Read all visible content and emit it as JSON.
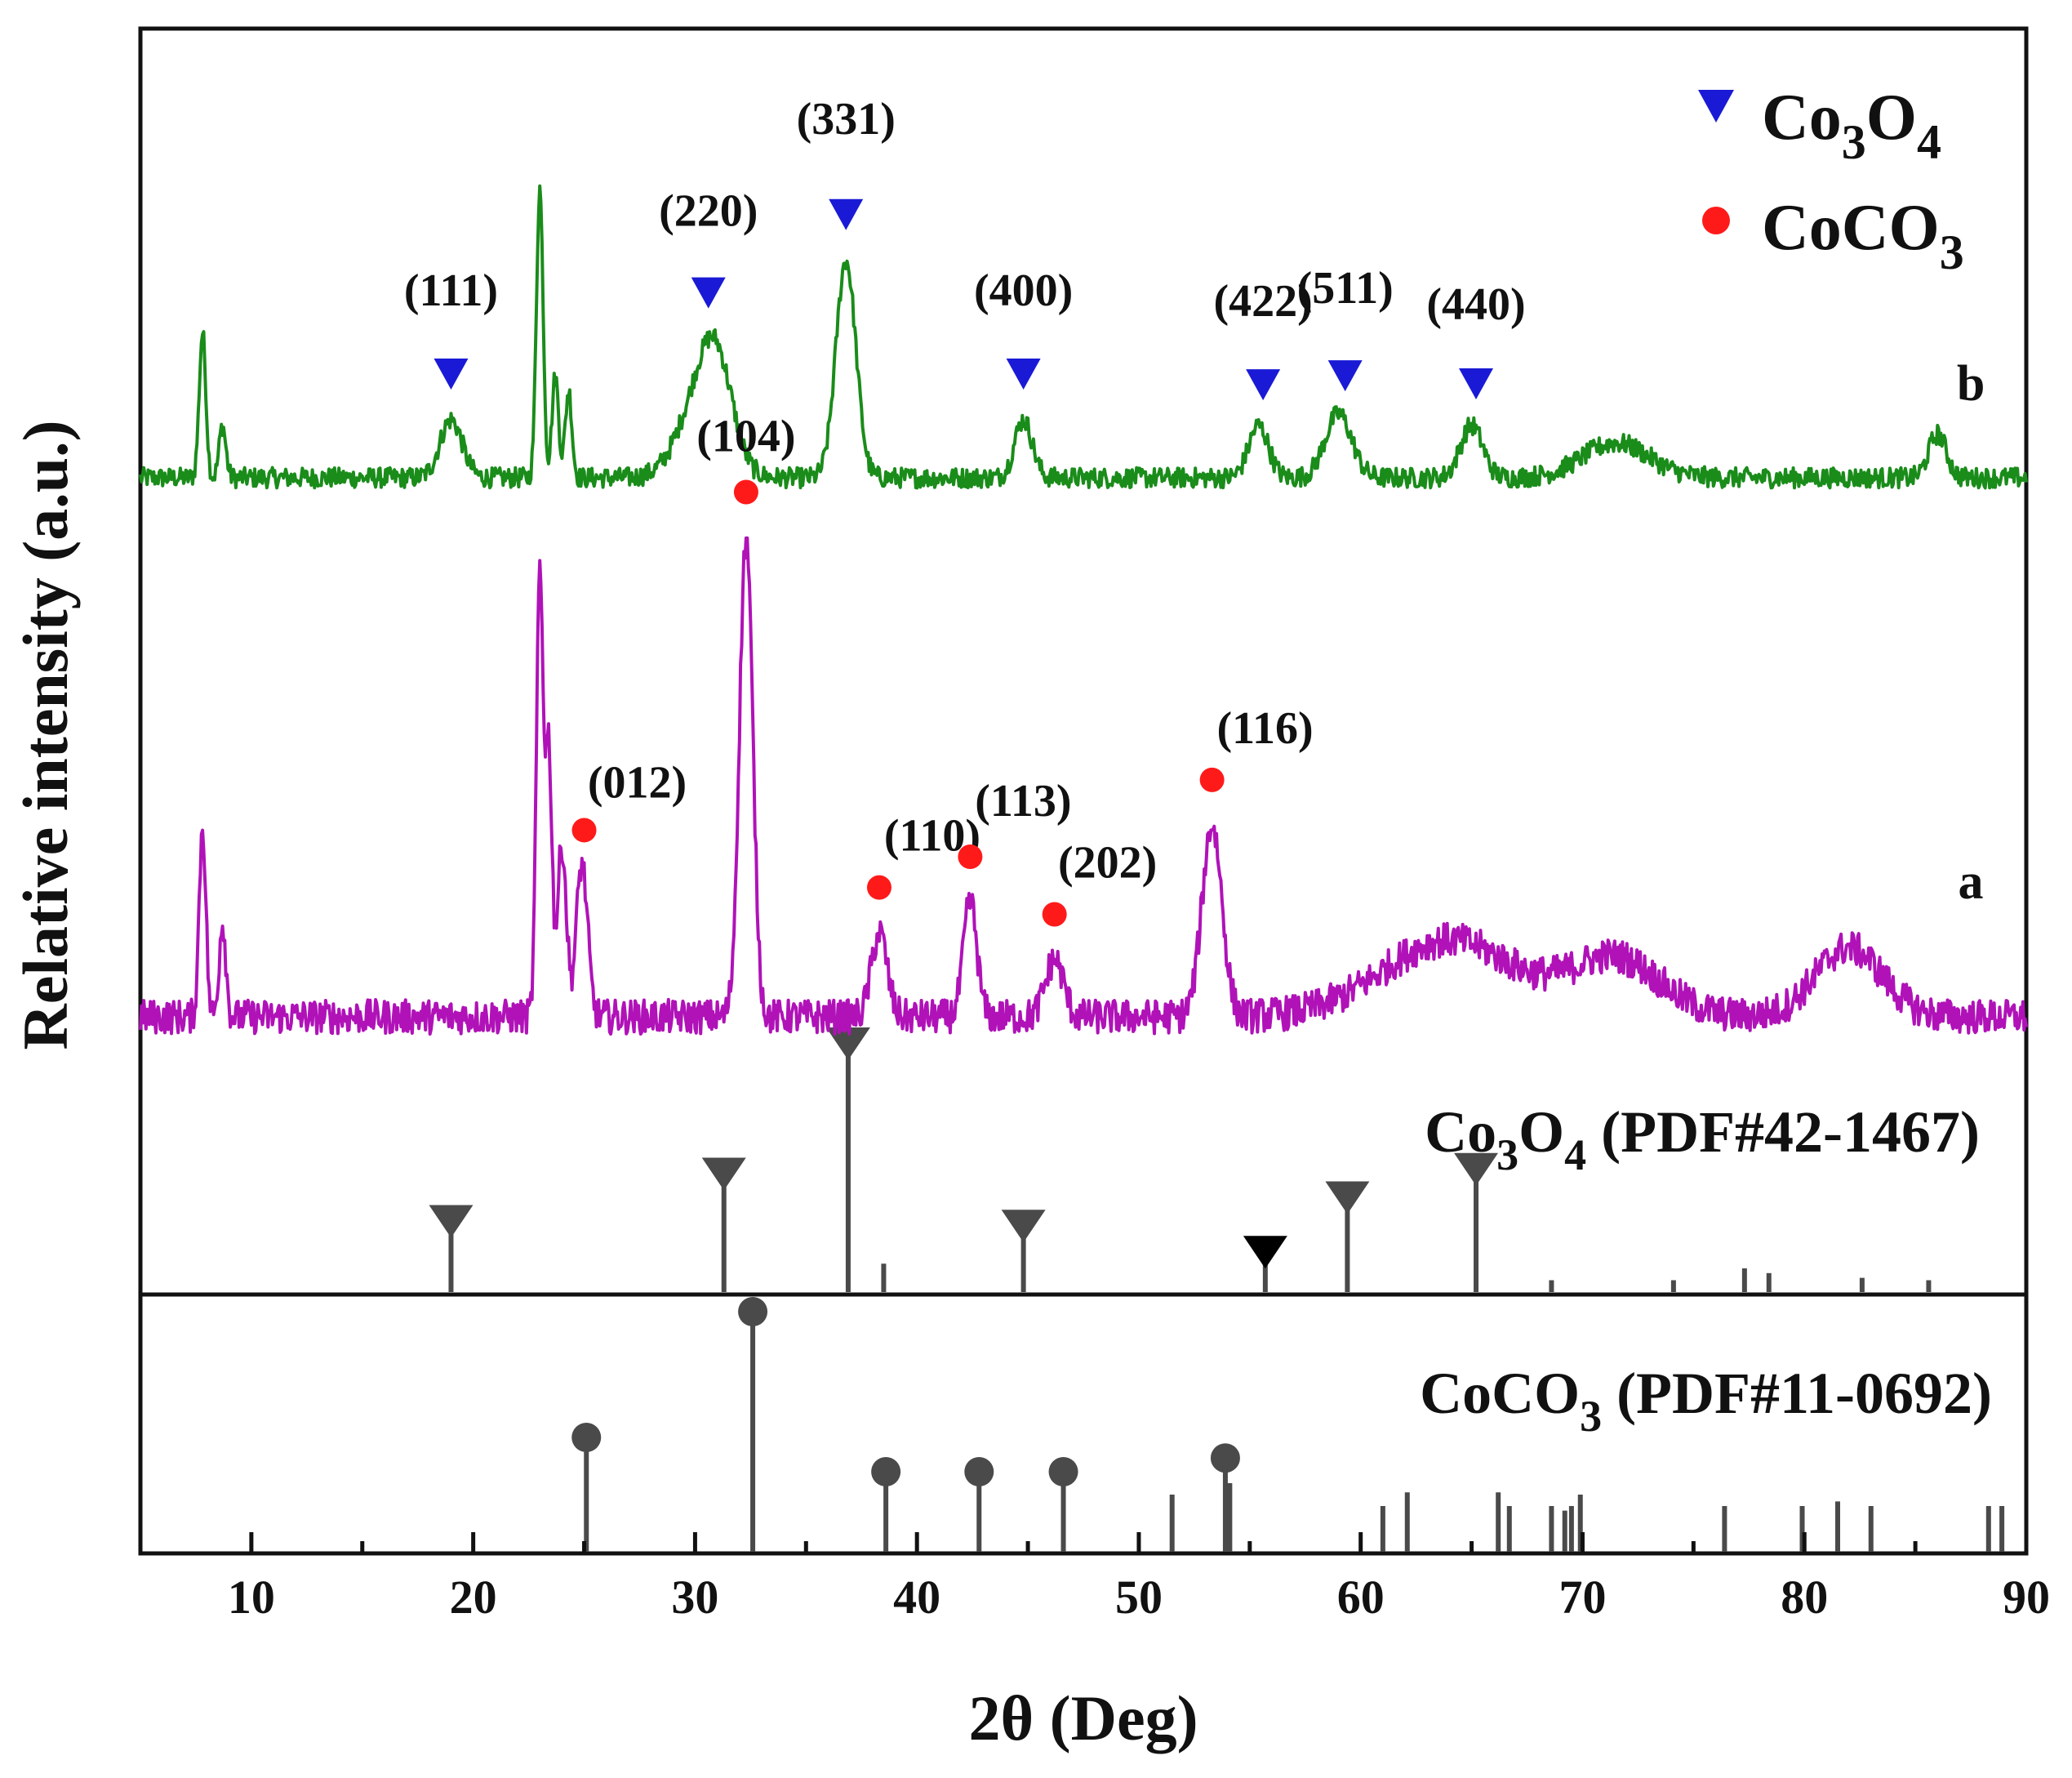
{
  "chart_data": {
    "type": "line",
    "title": "",
    "xlabel": "2θ (Deg)",
    "ylabel": "Relative intensity (a.u.)",
    "xlim": [
      5,
      90
    ],
    "xticks": [
      10,
      20,
      30,
      40,
      50,
      60,
      70,
      80,
      90
    ],
    "xtick_labels": [
      "10",
      "20",
      "30",
      "40",
      "50",
      "60",
      "70",
      "80",
      "90"
    ],
    "grid": false,
    "legend": {
      "placement": "top-right",
      "entries": [
        {
          "marker": "triangle-down",
          "color": "#1a1ad6",
          "label": {
            "base": "Co",
            "sub1": "3",
            "mid": "O",
            "sub2": "4"
          }
        },
        {
          "marker": "circle",
          "color": "#ff1a1a",
          "label": {
            "base": "CoCO",
            "sub1": "3"
          }
        }
      ]
    },
    "series": [
      {
        "name": "b",
        "color": "#1a8c1a",
        "baseline": 0.18,
        "noise": 0.035,
        "peaks": [
          {
            "x": 7.8,
            "h": 0.5,
            "w": 0.15
          },
          {
            "x": 8.7,
            "h": 0.18,
            "w": 0.15
          },
          {
            "x": 19.0,
            "h": 0.2,
            "w": 0.5
          },
          {
            "x": 23.0,
            "h": 1.0,
            "w": 0.15
          },
          {
            "x": 23.7,
            "h": 0.35,
            "w": 0.15
          },
          {
            "x": 24.3,
            "h": 0.3,
            "w": 0.15
          },
          {
            "x": 30.3,
            "h": 0.28,
            "w": 1.0
          },
          {
            "x": 31.0,
            "h": 0.25,
            "w": 0.7
          },
          {
            "x": 36.8,
            "h": 0.75,
            "w": 0.45
          },
          {
            "x": 44.8,
            "h": 0.2,
            "w": 0.4
          },
          {
            "x": 55.4,
            "h": 0.18,
            "w": 0.45
          },
          {
            "x": 59.0,
            "h": 0.22,
            "w": 0.6
          },
          {
            "x": 65.0,
            "h": 0.18,
            "w": 0.5
          },
          {
            "x": 71.5,
            "h": 0.12,
            "w": 1.5
          },
          {
            "x": 86.0,
            "h": 0.15,
            "w": 0.4
          }
        ]
      },
      {
        "name": "a",
        "color": "#b012b8",
        "baseline": 0.14,
        "noise": 0.045,
        "peaks": [
          {
            "x": 7.8,
            "h": 0.5,
            "w": 0.15
          },
          {
            "x": 8.7,
            "h": 0.25,
            "w": 0.15
          },
          {
            "x": 23.0,
            "h": 1.15,
            "w": 0.15
          },
          {
            "x": 23.4,
            "h": 0.7,
            "w": 0.15
          },
          {
            "x": 24.0,
            "h": 0.45,
            "w": 0.2
          },
          {
            "x": 24.9,
            "h": 0.4,
            "w": 0.25
          },
          {
            "x": 32.3,
            "h": 1.25,
            "w": 0.3
          },
          {
            "x": 38.3,
            "h": 0.22,
            "w": 0.35
          },
          {
            "x": 42.4,
            "h": 0.3,
            "w": 0.3
          },
          {
            "x": 46.2,
            "h": 0.15,
            "w": 0.4
          },
          {
            "x": 53.3,
            "h": 0.5,
            "w": 0.45
          },
          {
            "x": 64.0,
            "h": 0.2,
            "w": 3.0
          },
          {
            "x": 71.5,
            "h": 0.15,
            "w": 2.0
          },
          {
            "x": 82.0,
            "h": 0.18,
            "w": 1.5
          }
        ]
      }
    ],
    "curve_labels": [
      {
        "text": "b",
        "x": 84.0,
        "series": "b"
      },
      {
        "text": "a",
        "x": 84.0,
        "series": "a"
      }
    ],
    "peak_annotations": {
      "b": [
        {
          "x": 19.0,
          "label": "(111)"
        },
        {
          "x": 30.6,
          "label": "(220)"
        },
        {
          "x": 36.8,
          "label": "(331)"
        },
        {
          "x": 44.8,
          "label": "(400)"
        },
        {
          "x": 55.6,
          "label": "(422)"
        },
        {
          "x": 59.3,
          "label": "(511)"
        },
        {
          "x": 65.2,
          "label": "(440)"
        }
      ],
      "a": [
        {
          "x": 25.0,
          "label": "(012)"
        },
        {
          "x": 32.3,
          "label": "(104)"
        },
        {
          "x": 38.3,
          "label": "(110)"
        },
        {
          "x": 42.4,
          "label": "(113)"
        },
        {
          "x": 46.2,
          "label": "(202)"
        },
        {
          "x": 53.3,
          "label": "(116)"
        }
      ]
    },
    "reference_patterns": [
      {
        "name": "Co3O4 (PDF#42-1467)",
        "label": {
          "base": "Co",
          "sub1": "3",
          "mid": "O",
          "sub2": "4",
          "tail": " (PDF#42-1467)"
        },
        "marker": "triangle-down",
        "marker_color": "#4a4a4a",
        "lines": [
          {
            "x": 19.0,
            "h": 0.25,
            "marker": true
          },
          {
            "x": 31.3,
            "h": 0.45,
            "marker": true
          },
          {
            "x": 36.9,
            "h": 1.0,
            "marker": true
          },
          {
            "x": 38.5,
            "h": 0.12
          },
          {
            "x": 44.8,
            "h": 0.23,
            "marker": true
          },
          {
            "x": 55.7,
            "h": 0.12,
            "marker": true,
            "marker_color": "#000000"
          },
          {
            "x": 59.4,
            "h": 0.35,
            "marker": true
          },
          {
            "x": 65.2,
            "h": 0.47,
            "marker": true
          },
          {
            "x": 68.6,
            "h": 0.05
          },
          {
            "x": 74.1,
            "h": 0.05
          },
          {
            "x": 77.3,
            "h": 0.1
          },
          {
            "x": 78.4,
            "h": 0.08
          },
          {
            "x": 82.6,
            "h": 0.06
          },
          {
            "x": 85.6,
            "h": 0.05
          }
        ]
      },
      {
        "name": "CoCO3 (PDF#11-0692)",
        "label": {
          "base": "CoCO",
          "sub1": "3",
          "tail": " (PDF#11-0692)"
        },
        "marker": "circle",
        "marker_color": "#4a4a4a",
        "lines": [
          {
            "x": 25.1,
            "h": 0.45,
            "marker": true
          },
          {
            "x": 32.6,
            "h": 1.0,
            "marker": true
          },
          {
            "x": 38.6,
            "h": 0.3,
            "marker": true
          },
          {
            "x": 42.8,
            "h": 0.3,
            "marker": true
          },
          {
            "x": 46.6,
            "h": 0.3,
            "marker": true
          },
          {
            "x": 51.5,
            "h": 0.25
          },
          {
            "x": 53.9,
            "h": 0.36,
            "marker": true
          },
          {
            "x": 54.1,
            "h": 0.3
          },
          {
            "x": 61.0,
            "h": 0.2
          },
          {
            "x": 62.1,
            "h": 0.26
          },
          {
            "x": 66.2,
            "h": 0.26
          },
          {
            "x": 66.7,
            "h": 0.2
          },
          {
            "x": 68.6,
            "h": 0.2
          },
          {
            "x": 69.2,
            "h": 0.18
          },
          {
            "x": 69.5,
            "h": 0.2
          },
          {
            "x": 69.9,
            "h": 0.25
          },
          {
            "x": 76.4,
            "h": 0.2
          },
          {
            "x": 79.9,
            "h": 0.2
          },
          {
            "x": 81.5,
            "h": 0.22
          },
          {
            "x": 83.0,
            "h": 0.2
          },
          {
            "x": 88.3,
            "h": 0.2
          },
          {
            "x": 88.9,
            "h": 0.2
          }
        ]
      }
    ]
  }
}
